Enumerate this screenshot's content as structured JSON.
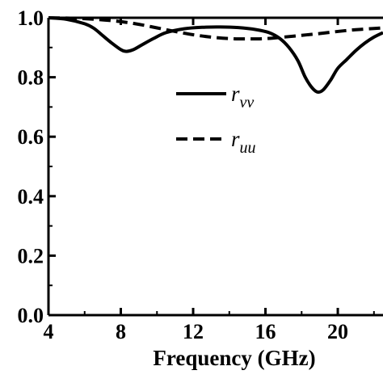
{
  "chart_data": {
    "type": "line",
    "title": "",
    "xlabel": "Frequency (GHz)",
    "ylabel": "",
    "xlim": [
      4,
      22.5
    ],
    "ylim": [
      0,
      1.0
    ],
    "xticks": [
      4,
      8,
      12,
      16,
      20
    ],
    "xtick_labels": [
      "4",
      "8",
      "12",
      "16",
      "20"
    ],
    "yticks": [
      0,
      0.2,
      0.4,
      0.6,
      0.8,
      1.0
    ],
    "ytick_labels": [
      "0.0",
      "0.2",
      "0.4",
      "0.6",
      "0.8",
      "1.0"
    ],
    "grid": false,
    "legend_position": "center",
    "series": [
      {
        "name": "rvv",
        "label_main": "r",
        "label_sub": "vv",
        "style": "solid",
        "color": "#000000",
        "x": [
          4,
          5,
          6,
          6.5,
          7,
          7.5,
          8,
          8.3,
          8.7,
          9.2,
          9.8,
          10.5,
          11.5,
          12.5,
          13.5,
          14.5,
          15.5,
          16.2,
          16.8,
          17.3,
          17.8,
          18.2,
          18.6,
          18.9,
          19.2,
          19.6,
          20,
          20.5,
          21,
          21.5,
          22,
          22.5
        ],
        "y": [
          1.0,
          0.995,
          0.98,
          0.965,
          0.94,
          0.915,
          0.893,
          0.887,
          0.893,
          0.91,
          0.93,
          0.95,
          0.963,
          0.968,
          0.969,
          0.967,
          0.96,
          0.95,
          0.93,
          0.9,
          0.855,
          0.8,
          0.763,
          0.75,
          0.758,
          0.79,
          0.83,
          0.86,
          0.89,
          0.915,
          0.935,
          0.95
        ]
      },
      {
        "name": "ruu",
        "label_main": "r",
        "label_sub": "uu",
        "style": "dashed",
        "color": "#000000",
        "x": [
          4,
          5,
          6,
          7,
          8,
          9,
          10,
          11,
          12,
          13,
          14,
          15,
          16,
          17,
          18,
          19,
          20,
          21,
          22,
          22.5
        ],
        "y": [
          1.0,
          0.999,
          0.997,
          0.993,
          0.987,
          0.978,
          0.966,
          0.954,
          0.943,
          0.935,
          0.93,
          0.929,
          0.93,
          0.935,
          0.941,
          0.947,
          0.954,
          0.96,
          0.964,
          0.966
        ]
      }
    ]
  }
}
